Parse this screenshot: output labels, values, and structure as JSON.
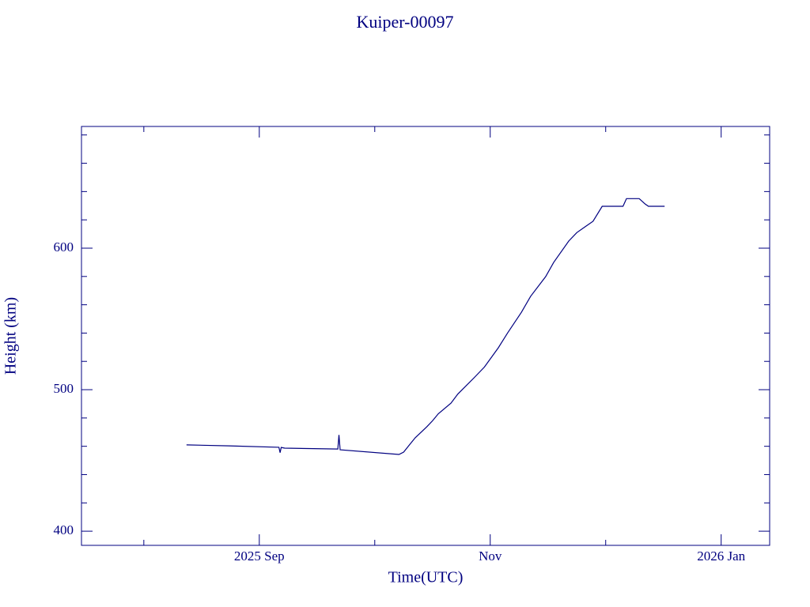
{
  "chart_data": {
    "type": "line",
    "title": "Kuiper-00097",
    "x_label": "Time(UTC)",
    "y_label": "Height (km)",
    "color": "#000080",
    "x": [
      8.37,
      8.74,
      9.17,
      9.18,
      9.19,
      9.22,
      9.68,
      9.69,
      9.7,
      10.21,
      10.25,
      10.3,
      10.35,
      10.45,
      10.5,
      10.55,
      10.66,
      10.72,
      10.86,
      10.95,
      11.07,
      11.15,
      11.27,
      11.35,
      11.48,
      11.55,
      11.68,
      11.75,
      11.82,
      11.89,
      11.97,
      12.15,
      12.18,
      12.29,
      12.34,
      12.37,
      12.51
    ],
    "values": [
      461,
      460.3,
      459.3,
      455.5,
      459.2,
      458.7,
      458.1,
      468,
      457.5,
      454.2,
      455.9,
      461,
      466,
      473.7,
      478,
      483,
      490.5,
      497,
      508.4,
      516,
      529.6,
      540,
      554.7,
      566,
      579.9,
      590,
      605,
      611,
      615,
      619,
      629.6,
      629.6,
      635,
      635,
      631.3,
      629.6,
      629.6
    ],
    "xlim": [
      7.46,
      13.42
    ],
    "xticks": [
      {
        "value": 9,
        "label": "2025 Sep"
      },
      {
        "value": 11,
        "label": "Nov"
      },
      {
        "value": 13,
        "label": "2026 Jan"
      }
    ],
    "minor_xticks": [
      8,
      10,
      12
    ],
    "ylim": [
      390,
      686
    ],
    "yticks": [
      400,
      500,
      600
    ],
    "minor_yticks": [
      420,
      440,
      460,
      480,
      520,
      540,
      560,
      580,
      620,
      640,
      660,
      680
    ]
  }
}
